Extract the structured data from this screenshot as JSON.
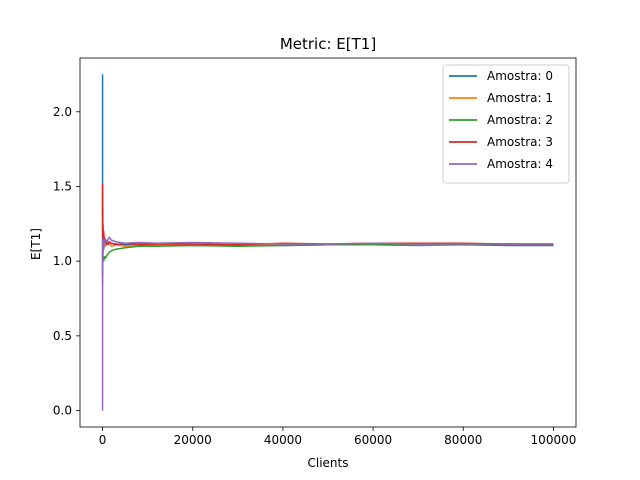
{
  "chart_data": {
    "type": "line",
    "title": "Metric: E[T1]",
    "xlabel": "Clients",
    "ylabel": "E[T1]",
    "xlim": [
      -5000,
      105000
    ],
    "ylim": [
      -0.11,
      2.36
    ],
    "xticks": [
      0,
      20000,
      40000,
      60000,
      80000,
      100000
    ],
    "xtick_labels": [
      "0",
      "20000",
      "40000",
      "60000",
      "80000",
      "100000"
    ],
    "yticks": [
      0.0,
      0.5,
      1.0,
      1.5,
      2.0
    ],
    "ytick_labels": [
      "0.0",
      "0.5",
      "1.0",
      "1.5",
      "2.0"
    ],
    "legend_position": "top-right",
    "series": [
      {
        "name": "Amostra: 0",
        "color": "#1f77b4",
        "x": [
          1,
          5,
          10,
          20,
          40,
          60,
          100,
          150,
          250,
          400,
          600,
          1000,
          1500,
          2000,
          3000,
          5000,
          8000,
          12000,
          20000,
          30000,
          40000,
          50000,
          60000,
          70000,
          80000,
          90000,
          100000
        ],
        "y": [
          2.25,
          1.6,
          0.9,
          1.2,
          1.0,
          1.15,
          1.05,
          1.12,
          1.08,
          1.13,
          1.1,
          1.12,
          1.11,
          1.12,
          1.115,
          1.11,
          1.115,
          1.11,
          1.105,
          1.11,
          1.105,
          1.11,
          1.11,
          1.105,
          1.11,
          1.105,
          1.105
        ]
      },
      {
        "name": "Amostra: 1",
        "color": "#ff7f0e",
        "x": [
          1,
          5,
          10,
          20,
          40,
          60,
          100,
          150,
          250,
          400,
          600,
          1000,
          1500,
          2000,
          3000,
          5000,
          8000,
          12000,
          20000,
          30000,
          40000,
          50000,
          60000,
          70000,
          80000,
          90000,
          100000
        ],
        "y": [
          1.4,
          1.3,
          1.2,
          1.25,
          1.1,
          1.2,
          1.15,
          1.18,
          1.12,
          1.16,
          1.1,
          1.13,
          1.12,
          1.1,
          1.11,
          1.1,
          1.105,
          1.11,
          1.11,
          1.105,
          1.11,
          1.11,
          1.115,
          1.11,
          1.11,
          1.115,
          1.11
        ]
      },
      {
        "name": "Amostra: 2",
        "color": "#2ca02c",
        "x": [
          1,
          5,
          10,
          20,
          40,
          60,
          100,
          150,
          250,
          400,
          600,
          1000,
          1500,
          2000,
          3000,
          5000,
          8000,
          12000,
          20000,
          30000,
          40000,
          50000,
          60000,
          70000,
          80000,
          90000,
          100000
        ],
        "y": [
          0.85,
          1.0,
          0.95,
          1.05,
          0.9,
          1.1,
          1.0,
          1.02,
          1.0,
          1.03,
          1.02,
          1.04,
          1.06,
          1.07,
          1.08,
          1.09,
          1.1,
          1.1,
          1.105,
          1.1,
          1.105,
          1.11,
          1.11,
          1.115,
          1.11,
          1.11,
          1.11
        ]
      },
      {
        "name": "Amostra: 3",
        "color": "#d62728",
        "x": [
          1,
          5,
          10,
          20,
          40,
          60,
          100,
          150,
          250,
          400,
          600,
          1000,
          1500,
          2000,
          3000,
          5000,
          8000,
          12000,
          20000,
          30000,
          40000,
          50000,
          60000,
          70000,
          80000,
          90000,
          100000
        ],
        "y": [
          1.52,
          1.3,
          1.45,
          1.2,
          1.35,
          1.1,
          1.25,
          1.15,
          1.2,
          1.12,
          1.14,
          1.11,
          1.13,
          1.12,
          1.11,
          1.12,
          1.11,
          1.115,
          1.115,
          1.11,
          1.12,
          1.115,
          1.12,
          1.12,
          1.12,
          1.115,
          1.115
        ]
      },
      {
        "name": "Amostra: 4",
        "color": "#9467bd",
        "x": [
          1,
          3,
          6,
          10,
          20,
          40,
          60,
          100,
          150,
          250,
          400,
          600,
          1000,
          1500,
          2000,
          3000,
          5000,
          8000,
          12000,
          20000,
          30000,
          40000,
          50000,
          60000,
          70000,
          80000,
          90000,
          100000
        ],
        "y": [
          0.0,
          1.1,
          0.7,
          1.15,
          0.95,
          1.1,
          1.05,
          1.12,
          1.1,
          1.14,
          1.12,
          1.15,
          1.13,
          1.16,
          1.14,
          1.13,
          1.12,
          1.125,
          1.12,
          1.125,
          1.12,
          1.115,
          1.115,
          1.12,
          1.115,
          1.115,
          1.115,
          1.115
        ]
      }
    ]
  }
}
